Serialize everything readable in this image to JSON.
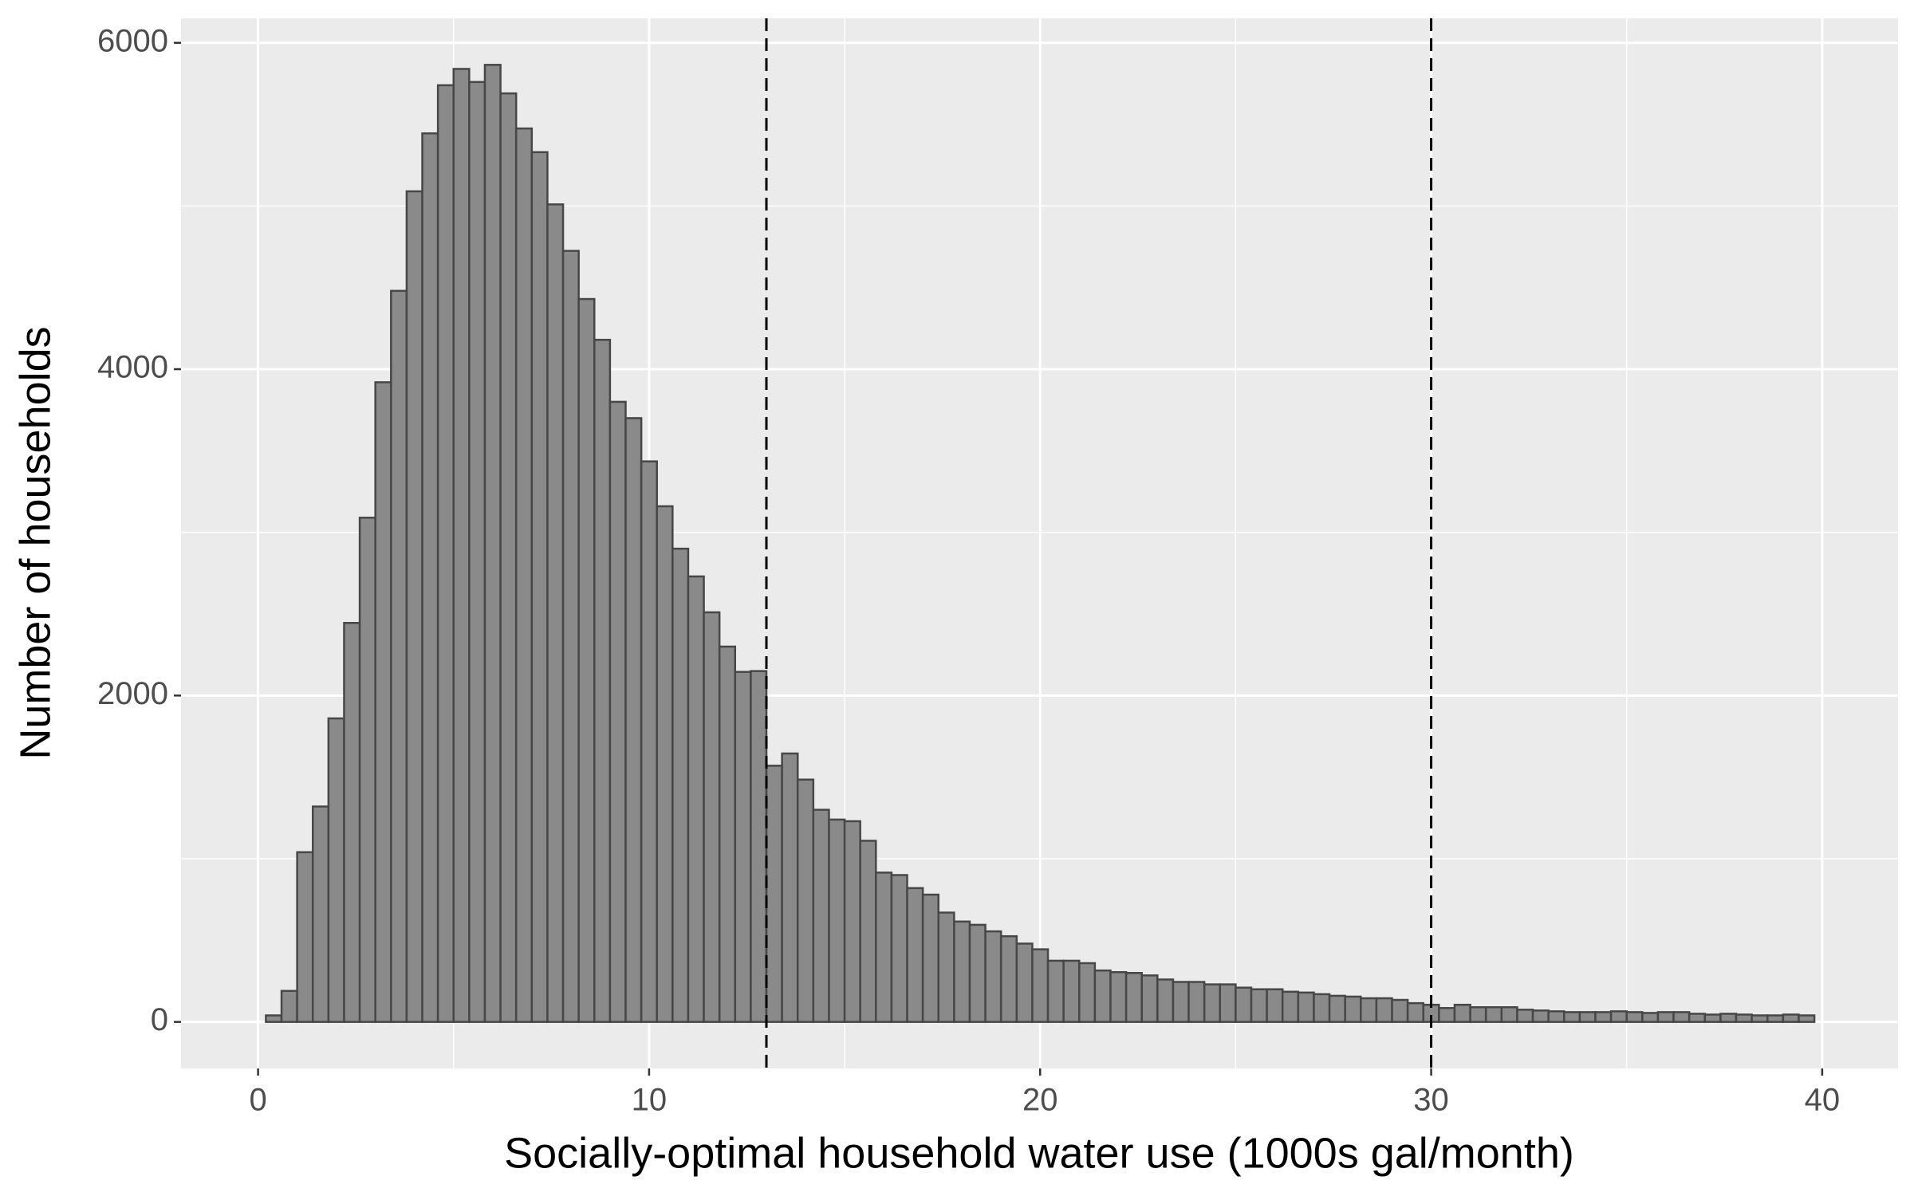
{
  "chart_data": {
    "type": "histogram",
    "xlabel": "Socially-optimal household water use (1000s gal/month)",
    "ylabel": "Number of households",
    "bins": [
      0.2,
      0.6,
      1.0,
      1.4,
      1.8,
      2.2,
      2.6,
      3.0,
      3.4,
      3.8,
      4.2,
      4.6,
      5.0,
      5.4,
      5.8,
      6.2,
      6.6,
      7.0,
      7.4,
      7.8,
      8.2,
      8.6,
      9.0,
      9.4,
      9.8,
      10.2,
      10.6,
      11.0,
      11.4,
      11.8,
      12.2,
      12.6,
      13.0,
      13.4,
      13.8,
      14.2,
      14.6,
      15.0,
      15.4,
      15.8,
      16.2,
      16.6,
      17.0,
      17.4,
      17.8,
      18.2,
      18.6,
      19.0,
      19.4,
      19.8,
      20.2,
      20.6,
      21.0,
      21.4,
      21.8,
      22.2,
      22.6,
      23.0,
      23.4,
      23.8,
      24.2,
      24.6,
      25.0,
      25.4,
      25.8,
      26.2,
      26.6,
      27.0,
      27.4,
      27.8,
      28.2,
      28.6,
      29.0,
      29.4,
      29.8,
      30.2,
      30.6,
      31.0,
      31.4,
      31.8,
      32.2,
      32.6,
      33.0,
      33.4,
      33.8,
      34.2,
      34.6,
      35.0,
      35.4,
      35.8,
      36.2,
      36.6,
      37.0,
      37.4,
      37.8,
      38.2,
      38.6,
      39.0,
      39.4,
      39.8
    ],
    "counts": [
      40,
      190,
      1040,
      1320,
      1860,
      2445,
      3090,
      3920,
      4480,
      5090,
      5445,
      5740,
      5840,
      5760,
      5865,
      5690,
      5475,
      5330,
      5010,
      4725,
      4430,
      4180,
      3800,
      3700,
      3435,
      3160,
      2900,
      2730,
      2510,
      2300,
      2145,
      2150,
      1570,
      1645,
      1485,
      1300,
      1240,
      1230,
      1110,
      915,
      900,
      820,
      780,
      670,
      615,
      595,
      555,
      525,
      480,
      445,
      375,
      375,
      360,
      315,
      305,
      300,
      285,
      260,
      245,
      245,
      230,
      230,
      210,
      200,
      200,
      185,
      180,
      170,
      160,
      155,
      145,
      145,
      135,
      115,
      105,
      85,
      105,
      90,
      90,
      90,
      75,
      70,
      65,
      60,
      60,
      60,
      65,
      60,
      55,
      60,
      60,
      50,
      45,
      50,
      45,
      40,
      40,
      45,
      40
    ],
    "color": "#8a8a8a",
    "vlines": [
      13,
      30
    ],
    "xlim": [
      -1.97,
      41.94
    ],
    "xticks": [
      0,
      10,
      20,
      30,
      40
    ],
    "ylim": [
      -285,
      6150
    ],
    "yticks": [
      0,
      2000,
      4000,
      6000
    ],
    "grid": true
  }
}
